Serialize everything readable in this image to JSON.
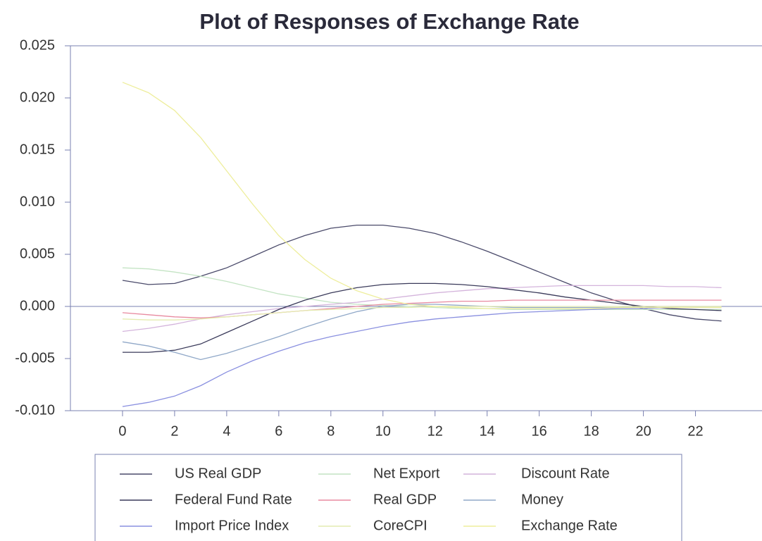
{
  "chart_data": {
    "type": "line",
    "title": "Plot of Responses of Exchange Rate",
    "x": [
      0,
      1,
      2,
      3,
      4,
      5,
      6,
      7,
      8,
      9,
      10,
      11,
      12,
      13,
      14,
      15,
      16,
      17,
      18,
      19,
      20,
      21,
      22,
      23
    ],
    "xlim": [
      -2,
      24.5
    ],
    "xticks": [
      0,
      2,
      4,
      6,
      8,
      10,
      12,
      14,
      16,
      18,
      20,
      22
    ],
    "ylim": [
      -0.01,
      0.025
    ],
    "yticks": [
      0.025,
      {
        "value": 0.02,
        "label": "0.020"
      },
      0.015,
      {
        "value": 0.01,
        "label": "0.010"
      },
      0.005,
      {
        "value": 0.0,
        "label": "0.000"
      },
      -0.005,
      {
        "value": -0.01,
        "label": "-0.010"
      }
    ],
    "grid": false,
    "legend": "bottom",
    "series": [
      {
        "name": "US Real GDP",
        "color": "#4a4a6a",
        "values": [
          0.0025,
          0.0021,
          0.0022,
          0.0029,
          0.0037,
          0.0048,
          0.0059,
          0.0068,
          0.0075,
          0.0078,
          0.0078,
          0.0075,
          0.007,
          0.0062,
          0.0053,
          0.0043,
          0.0033,
          0.0023,
          0.0013,
          0.0005,
          -0.0002,
          -0.0008,
          -0.0012,
          -0.0014
        ]
      },
      {
        "name": "Net Export",
        "color": "#c4e4c4",
        "values": [
          0.0037,
          0.0036,
          0.0033,
          0.0029,
          0.0024,
          0.0018,
          0.0012,
          0.0008,
          0.0004,
          0.0002,
          0.0001,
          0.0,
          -0.0001,
          -0.0002,
          -0.0002,
          -0.0003,
          -0.0003,
          -0.0003,
          -0.0003,
          -0.0003,
          -0.0003,
          -0.0003,
          -0.0003,
          -0.0003
        ]
      },
      {
        "name": "Discount Rate",
        "color": "#d4b4dc",
        "values": [
          -0.0024,
          -0.0021,
          -0.0017,
          -0.0012,
          -0.0008,
          -0.0005,
          -0.0002,
          0.0,
          0.0002,
          0.0004,
          0.0007,
          0.001,
          0.0013,
          0.0015,
          0.0017,
          0.0018,
          0.0019,
          0.002,
          0.002,
          0.002,
          0.002,
          0.0019,
          0.0019,
          0.0018
        ]
      },
      {
        "name": "Federal Fund Rate",
        "color": "#3a3a5a",
        "values": [
          -0.0044,
          -0.0044,
          -0.0042,
          -0.0036,
          -0.0025,
          -0.0014,
          -0.0003,
          0.0006,
          0.0013,
          0.0018,
          0.0021,
          0.0022,
          0.0022,
          0.0021,
          0.0019,
          0.0016,
          0.0013,
          0.0009,
          0.0006,
          0.0003,
          0.0,
          -0.0002,
          -0.0003,
          -0.0004
        ]
      },
      {
        "name": "Real GDP",
        "color": "#e88aa0",
        "values": [
          -0.0006,
          -0.0008,
          -0.001,
          -0.0011,
          -0.001,
          -0.0008,
          -0.0006,
          -0.0004,
          -0.0002,
          0.0,
          0.0002,
          0.0003,
          0.0004,
          0.0005,
          0.0005,
          0.0006,
          0.0006,
          0.0006,
          0.0006,
          0.0006,
          0.0006,
          0.0006,
          0.0006,
          0.0006
        ]
      },
      {
        "name": "Money",
        "color": "#90a8c8",
        "values": [
          -0.0034,
          -0.0038,
          -0.0044,
          -0.0051,
          -0.0045,
          -0.0037,
          -0.0029,
          -0.002,
          -0.0012,
          -0.0005,
          0.0,
          0.0002,
          0.0002,
          0.0001,
          0.0,
          -0.0001,
          -0.0001,
          -0.0001,
          -0.0001,
          -0.0001,
          0.0,
          0.0,
          0.0,
          0.0
        ]
      },
      {
        "name": "Import Price Index",
        "color": "#8a90e0",
        "values": [
          -0.0096,
          -0.0092,
          -0.0086,
          -0.0076,
          -0.0063,
          -0.0052,
          -0.0043,
          -0.0035,
          -0.0029,
          -0.0024,
          -0.0019,
          -0.0015,
          -0.0012,
          -0.001,
          -0.0008,
          -0.0006,
          -0.0005,
          -0.0004,
          -0.0003,
          -0.0002,
          -0.0002,
          -0.0001,
          -0.0001,
          -0.0001
        ]
      },
      {
        "name": "CoreCPI",
        "color": "#e4ecb0",
        "values": [
          -0.0012,
          -0.0013,
          -0.0013,
          -0.0012,
          -0.001,
          -0.0008,
          -0.0006,
          -0.0004,
          -0.0003,
          -0.0002,
          -0.0001,
          -0.0001,
          0.0,
          0.0,
          0.0,
          0.0,
          0.0,
          0.0,
          0.0,
          0.0,
          0.0,
          0.0,
          0.0,
          0.0
        ]
      },
      {
        "name": "Exchange Rate",
        "color": "#eeee9c",
        "values": [
          0.0215,
          0.0205,
          0.0188,
          0.0162,
          0.013,
          0.0098,
          0.0068,
          0.0045,
          0.0027,
          0.0015,
          0.0007,
          0.0002,
          0.0,
          -0.0001,
          -0.0002,
          -0.0002,
          -0.0002,
          -0.0002,
          -0.0002,
          -0.0001,
          -0.0001,
          -0.0001,
          -0.0001,
          -0.0001
        ]
      }
    ]
  }
}
